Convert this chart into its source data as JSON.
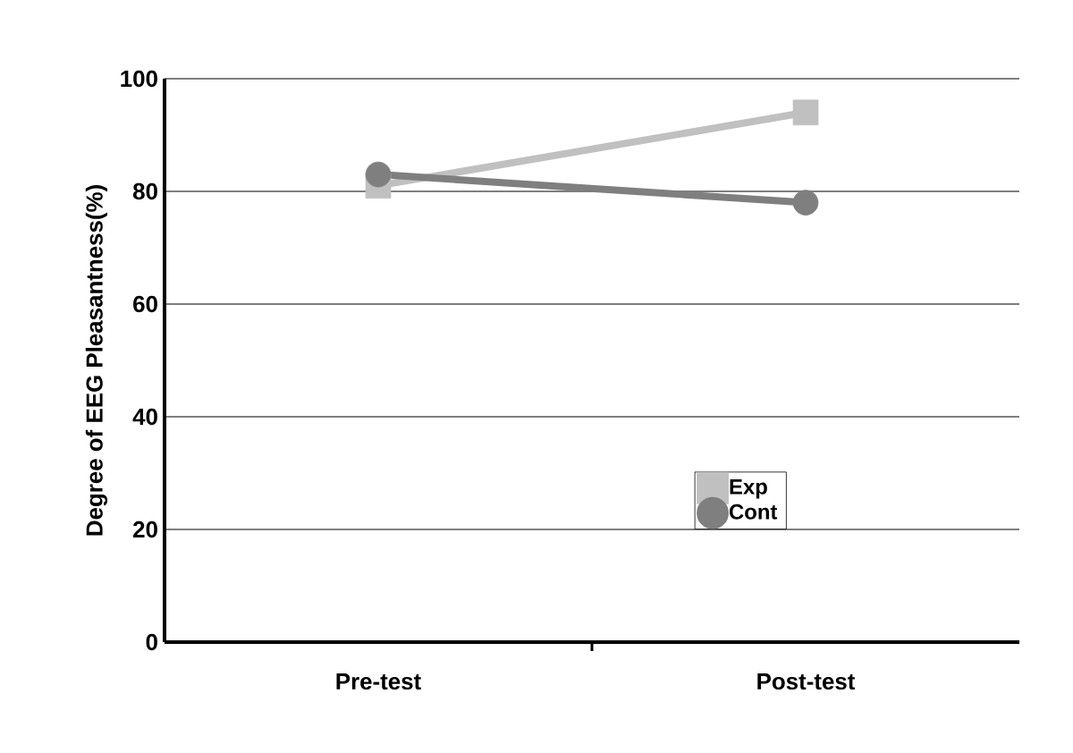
{
  "chart_data": {
    "type": "line",
    "ylabel": "Degree of EEG Pleasantness(%)",
    "categories": [
      "Pre-test",
      "Post-test"
    ],
    "series": [
      {
        "name": "Exp",
        "color": "#c0c0c0",
        "marker": "square",
        "values": [
          81,
          94
        ]
      },
      {
        "name": "Cont",
        "color": "#7f7f7f",
        "marker": "circle",
        "values": [
          83,
          78
        ]
      }
    ],
    "ylim": [
      0,
      100
    ],
    "yticks": [
      0,
      20,
      40,
      60,
      80,
      100
    ],
    "grid": "y",
    "legend": "right"
  }
}
